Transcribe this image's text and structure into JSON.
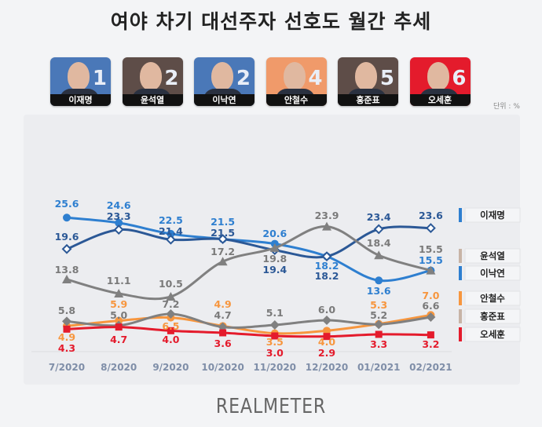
{
  "title": "여야 차기 대선주자 선호도 월간 추세",
  "candidates": [
    {
      "name": "이재명",
      "rank": "1",
      "bg": "#4a78b8"
    },
    {
      "name": "윤석열",
      "rank": "2",
      "bg": "#5e4d48"
    },
    {
      "name": "이낙연",
      "rank": "2",
      "bg": "#4a78b8"
    },
    {
      "name": "안철수",
      "rank": "4",
      "bg": "#f09a6a"
    },
    {
      "name": "홍준표",
      "rank": "5",
      "bg": "#5e4d48"
    },
    {
      "name": "오세훈",
      "rank": "6",
      "bg": "#e41b2c"
    }
  ],
  "unit": "단위 : %",
  "logo": "REALMETER",
  "chart_data": {
    "type": "line",
    "title": "여야 차기 대선주자 선호도 월간 추세",
    "categories": [
      "7/2020",
      "8/2020",
      "9/2020",
      "10/2020",
      "11/2020",
      "12/2020",
      "01/2021",
      "02/2021"
    ],
    "series": [
      {
        "name": "이낙연",
        "color": "#2e7fd0",
        "marker": "circle",
        "values": [
          25.6,
          24.6,
          22.5,
          21.5,
          20.6,
          18.2,
          13.6,
          15.5
        ]
      },
      {
        "name": "이재명",
        "color": "#2b5896",
        "marker": "open-diamond",
        "values": [
          19.6,
          23.3,
          21.4,
          21.5,
          19.4,
          18.2,
          23.4,
          23.6
        ]
      },
      {
        "name": "윤석열",
        "color": "#808080",
        "marker": "triangle",
        "values": [
          13.8,
          11.1,
          10.5,
          17.2,
          19.8,
          23.9,
          18.4,
          15.5
        ]
      },
      {
        "name": "안철수",
        "color": "#f7963e",
        "marker": "circle",
        "values": [
          4.9,
          5.9,
          6.5,
          4.9,
          3.5,
          4.0,
          5.3,
          7.0
        ]
      },
      {
        "name": "홍준표",
        "color": "#808080",
        "marker": "diamond",
        "values": [
          5.8,
          5.0,
          7.2,
          4.7,
          5.1,
          6.0,
          5.2,
          6.6
        ]
      },
      {
        "name": "오세훈",
        "color": "#e41b2c",
        "marker": "square",
        "values": [
          4.3,
          4.7,
          4.0,
          3.6,
          3.0,
          2.9,
          3.3,
          3.2
        ]
      }
    ],
    "legend": [
      {
        "label": "이재명",
        "color": "#2e7fd0"
      },
      {
        "label": "윤석열",
        "color": "#c8b4a6"
      },
      {
        "label": "이낙연",
        "color": "#2e7fd0"
      },
      {
        "label": "안철수",
        "color": "#f7963e"
      },
      {
        "label": "홍준표",
        "color": "#c8b4a6"
      },
      {
        "label": "오세훈",
        "color": "#e41b2c"
      }
    ],
    "legend_position": "right",
    "unit": "단위 : %",
    "grid": false
  }
}
